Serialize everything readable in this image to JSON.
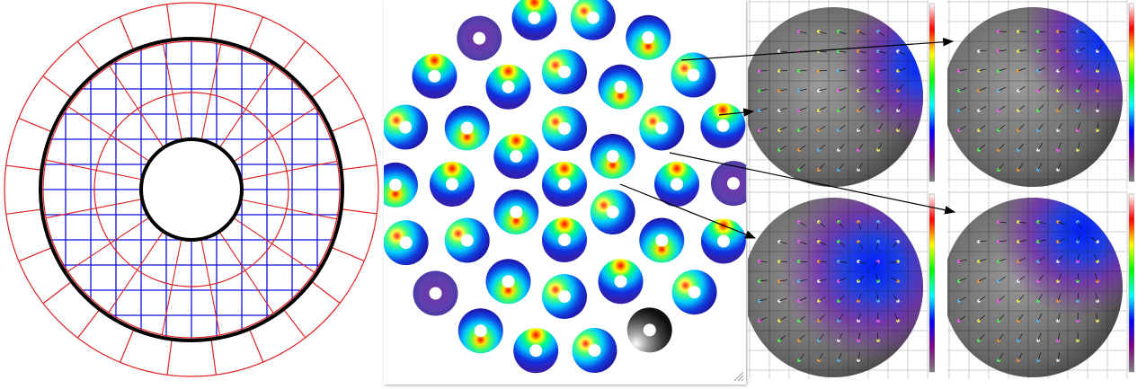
{
  "colors": {
    "grid_red": "#e02020",
    "grid_blue": "#1010e0",
    "outline": "#000000",
    "arrow": "#000000",
    "colormap": [
      "#ffffff",
      "#ff0000",
      "#ffff00",
      "#00ff00",
      "#00ffff",
      "#0000ff",
      "#800080",
      "#808080"
    ]
  },
  "sensor_layout": {
    "icon": "segmented-ring-sensor-icon",
    "outer_ring_segments": 24,
    "inner_ring_segments": 16,
    "grid_cells_across": 12
  },
  "donut_array": {
    "icon": "donut-array-icon",
    "rings": [
      {
        "count": 1,
        "label": "center"
      },
      {
        "count": 6,
        "label": "ring-1"
      },
      {
        "count": 12,
        "label": "ring-2"
      },
      {
        "count": 18,
        "label": "ring-3"
      }
    ],
    "resize_grip_icon": "resize-grip-icon"
  },
  "maps": [
    {
      "id": "map-tl",
      "icon": "intensity-map-icon",
      "hotspot": "top-right"
    },
    {
      "id": "map-tr",
      "icon": "intensity-map-icon",
      "hotspot": "top-right"
    },
    {
      "id": "map-bl",
      "icon": "intensity-map-icon",
      "hotspot": "center"
    },
    {
      "id": "map-br",
      "icon": "intensity-map-icon",
      "hotspot": "upper-right"
    }
  ]
}
